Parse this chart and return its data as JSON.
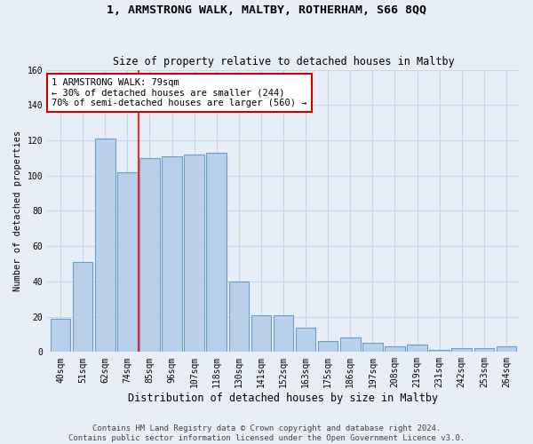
{
  "title": "1, ARMSTRONG WALK, MALTBY, ROTHERHAM, S66 8QQ",
  "subtitle": "Size of property relative to detached houses in Maltby",
  "xlabel": "Distribution of detached houses by size in Maltby",
  "ylabel": "Number of detached properties",
  "footer_line1": "Contains HM Land Registry data © Crown copyright and database right 2024.",
  "footer_line2": "Contains public sector information licensed under the Open Government Licence v3.0.",
  "categories": [
    "40sqm",
    "51sqm",
    "62sqm",
    "74sqm",
    "85sqm",
    "96sqm",
    "107sqm",
    "118sqm",
    "130sqm",
    "141sqm",
    "152sqm",
    "163sqm",
    "175sqm",
    "186sqm",
    "197sqm",
    "208sqm",
    "219sqm",
    "231sqm",
    "242sqm",
    "253sqm",
    "264sqm"
  ],
  "values": [
    19,
    51,
    121,
    102,
    110,
    111,
    112,
    113,
    40,
    21,
    21,
    14,
    6,
    8,
    5,
    3,
    4,
    1,
    2,
    2,
    3
  ],
  "bar_color": "#b8d0ea",
  "bar_edge_color": "#6a9fc8",
  "background_color": "#e8eef8",
  "grid_color": "#c8d4e8",
  "annotation_box_text": "1 ARMSTRONG WALK: 79sqm\n← 30% of detached houses are smaller (244)\n70% of semi-detached houses are larger (560) →",
  "annotation_box_color": "#ffffff",
  "annotation_box_edge_color": "#cc0000",
  "red_line_x": 3.5,
  "ylim": [
    0,
    160
  ],
  "yticks": [
    0,
    20,
    40,
    60,
    80,
    100,
    120,
    140,
    160
  ],
  "title_fontsize": 9.5,
  "subtitle_fontsize": 8.5,
  "xlabel_fontsize": 8.5,
  "ylabel_fontsize": 7.5,
  "tick_fontsize": 7,
  "annotation_fontsize": 7.5,
  "footer_fontsize": 6.5
}
